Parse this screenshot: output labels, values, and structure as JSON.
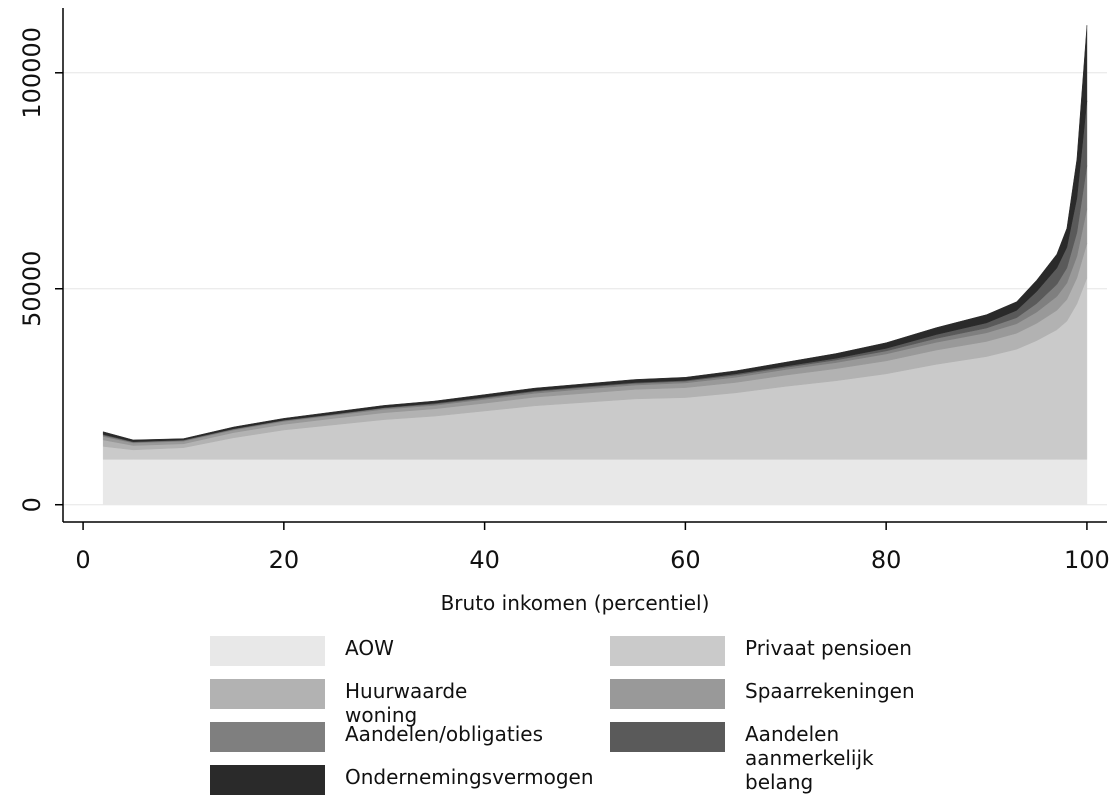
{
  "chart_data": {
    "type": "stacked_area",
    "x_label": "Bruto inkomen (percentiel)",
    "x": [
      2,
      5,
      10,
      15,
      20,
      25,
      30,
      35,
      40,
      45,
      50,
      55,
      60,
      65,
      70,
      75,
      80,
      85,
      90,
      93,
      95,
      97,
      98,
      99,
      100
    ],
    "series": [
      {
        "name": "AOW",
        "color": "#e8e8e8",
        "values": [
          10500,
          10500,
          10500,
          10500,
          10500,
          10500,
          10500,
          10500,
          10500,
          10500,
          10500,
          10500,
          10500,
          10500,
          10500,
          10500,
          10500,
          10500,
          10500,
          10500,
          10500,
          10500,
          10500,
          10500,
          10500
        ]
      },
      {
        "name": "Privaat pensioen",
        "color": "#cacaca",
        "values": [
          3000,
          2200,
          2700,
          5000,
          6800,
          8000,
          9200,
          10000,
          11200,
          12400,
          13200,
          14000,
          14300,
          15400,
          16900,
          18200,
          19800,
          22000,
          23800,
          25500,
          27500,
          30000,
          32000,
          36000,
          42000
        ]
      },
      {
        "name": "Huurwaarde woning",
        "color": "#b2b2b2",
        "values": [
          1500,
          1000,
          900,
          1200,
          1300,
          1500,
          1600,
          1700,
          1800,
          2000,
          2100,
          2200,
          2300,
          2400,
          2600,
          2800,
          3000,
          3300,
          3500,
          3700,
          4000,
          4500,
          5000,
          6000,
          8000
        ]
      },
      {
        "name": "Spaarrekeningen",
        "color": "#999999",
        "values": [
          800,
          600,
          600,
          600,
          700,
          700,
          800,
          800,
          900,
          900,
          1000,
          1000,
          1100,
          1200,
          1300,
          1400,
          1600,
          1800,
          2000,
          2200,
          2600,
          3200,
          3800,
          5000,
          8000
        ]
      },
      {
        "name": "Aandelen/obligaties",
        "color": "#7f7f7f",
        "values": [
          300,
          200,
          200,
          200,
          200,
          200,
          300,
          300,
          300,
          400,
          400,
          400,
          400,
          500,
          500,
          600,
          700,
          900,
          1100,
          1400,
          2000,
          2800,
          3500,
          5500,
          10000
        ]
      },
      {
        "name": "Aandelen aanmerkelijk belang",
        "color": "#5a5a5a",
        "values": [
          200,
          100,
          100,
          100,
          100,
          100,
          100,
          200,
          200,
          200,
          200,
          200,
          200,
          300,
          300,
          400,
          600,
          900,
          1200,
          1700,
          2800,
          3800,
          4800,
          8000,
          15000
        ]
      },
      {
        "name": "Ondernemingsvermogen",
        "color": "#2a2a2a",
        "values": [
          600,
          400,
          300,
          400,
          400,
          500,
          500,
          500,
          600,
          600,
          600,
          700,
          700,
          700,
          900,
          1100,
          1300,
          1600,
          1900,
          2000,
          2600,
          3200,
          4400,
          9000,
          17500
        ]
      }
    ],
    "xlim": [
      -2,
      102
    ],
    "xticks": [
      0,
      20,
      40,
      60,
      80,
      100
    ],
    "ylim": [
      -4000,
      115000
    ],
    "yticks": [
      0,
      50000,
      100000
    ],
    "grid": true
  }
}
